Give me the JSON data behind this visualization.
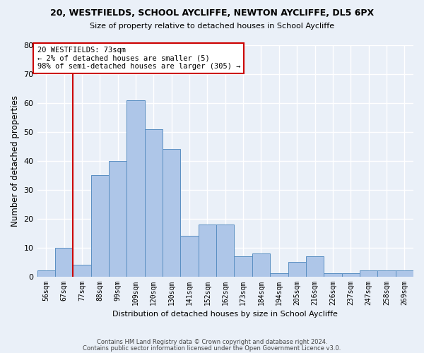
{
  "title1": "20, WESTFIELDS, SCHOOL AYCLIFFE, NEWTON AYCLIFFE, DL5 6PX",
  "title2": "Size of property relative to detached houses in School Aycliffe",
  "xlabel": "Distribution of detached houses by size in School Aycliffe",
  "ylabel": "Number of detached properties",
  "bar_labels": [
    "56sqm",
    "67sqm",
    "77sqm",
    "88sqm",
    "99sqm",
    "109sqm",
    "120sqm",
    "130sqm",
    "141sqm",
    "152sqm",
    "162sqm",
    "173sqm",
    "184sqm",
    "194sqm",
    "205sqm",
    "216sqm",
    "226sqm",
    "237sqm",
    "247sqm",
    "258sqm",
    "269sqm"
  ],
  "bar_values": [
    2,
    10,
    4,
    35,
    40,
    61,
    51,
    44,
    14,
    18,
    18,
    7,
    8,
    1,
    5,
    7,
    1,
    1,
    2,
    2,
    2
  ],
  "bar_color": "#aec6e8",
  "bar_edge_color": "#5a8fc2",
  "vline_x": 1.5,
  "vline_color": "#cc0000",
  "annotation_text": "20 WESTFIELDS: 73sqm\n← 2% of detached houses are smaller (5)\n98% of semi-detached houses are larger (305) →",
  "ylim": [
    0,
    80
  ],
  "yticks": [
    0,
    10,
    20,
    30,
    40,
    50,
    60,
    70,
    80
  ],
  "footer1": "Contains HM Land Registry data © Crown copyright and database right 2024.",
  "footer2": "Contains public sector information licensed under the Open Government Licence v3.0.",
  "bg_color": "#eaf0f8",
  "plot_bg_color": "#eaf0f8"
}
